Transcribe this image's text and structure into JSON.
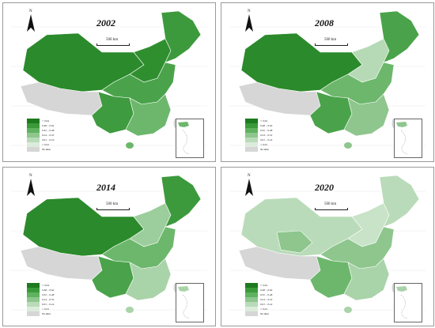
{
  "scale_label": "500 km",
  "north_label": "N",
  "nodata_color": "#d6d6d6",
  "legend": [
    {
      "label": "> 0.64",
      "color": "#1e7a1e"
    },
    {
      "label": "0.48 – 0.64",
      "color": "#3a9a3a"
    },
    {
      "label": "0.32 – 0.48",
      "color": "#5fb25f"
    },
    {
      "label": "0.24 – 0.32",
      "color": "#8ec68e"
    },
    {
      "label": "0.01 – 0.24",
      "color": "#b9dbb9"
    },
    {
      "label": "< 0.01",
      "color": "#dcecdc"
    },
    {
      "label": "No data",
      "color": "#d6d6d6"
    }
  ],
  "panels": [
    {
      "year": "2002",
      "west": "#2b8a2b",
      "north": "#2f8f2f",
      "northeast": "#3c9a3c",
      "central": "#4aa34a",
      "south": "#6cb76c",
      "sw": "#3f9b3f"
    },
    {
      "year": "2008",
      "west": "#2b8a2b",
      "north": "#b6d9b6",
      "northeast": "#4aa34a",
      "central": "#6cb76c",
      "south": "#8ec68e",
      "sw": "#4aa34a"
    },
    {
      "year": "2014",
      "west": "#2b8a2b",
      "north": "#9ccd9c",
      "northeast": "#3c9a3c",
      "central": "#6cb76c",
      "south": "#a9d3a9",
      "sw": "#4aa34a"
    },
    {
      "year": "2020",
      "west": "#b9dbb9",
      "north": "#c8e3c8",
      "northeast": "#b9dbb9",
      "central": "#8ec68e",
      "south": "#a9d3a9",
      "sw": "#6cb76c"
    }
  ]
}
